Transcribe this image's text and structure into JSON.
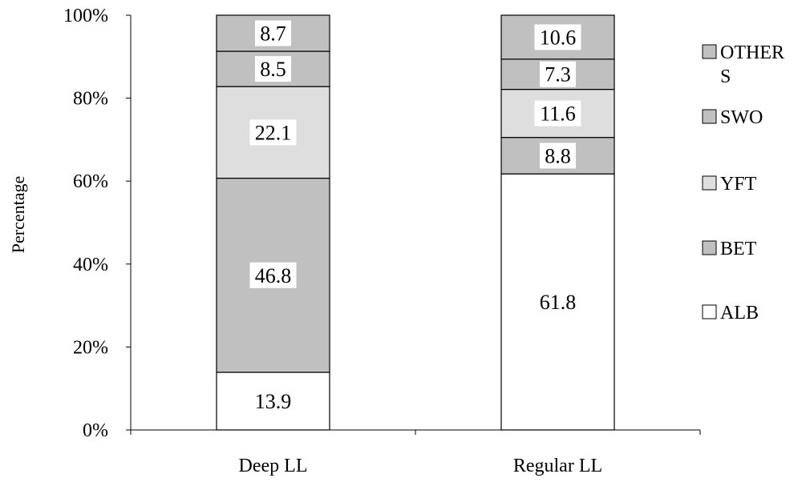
{
  "chart_data": {
    "type": "bar",
    "stacked": true,
    "percent_stacked": true,
    "categories": [
      "Deep LL",
      "Regular LL"
    ],
    "series": [
      {
        "name": "ALB",
        "values": [
          13.9,
          61.8
        ],
        "color": "#ffffff"
      },
      {
        "name": "BET",
        "values": [
          46.8,
          8.8
        ],
        "color": "#c0c0c0"
      },
      {
        "name": "YFT",
        "values": [
          22.1,
          11.6
        ],
        "color": "#dedede"
      },
      {
        "name": "SWO",
        "values": [
          8.5,
          7.3
        ],
        "color": "#c0c0c0"
      },
      {
        "name": "OTHERS",
        "values": [
          8.7,
          10.6
        ],
        "color": "#c0c0c0"
      }
    ],
    "legend": {
      "placement": "right",
      "entries": [
        {
          "label_lines": [
            "OTHER",
            "S"
          ],
          "series": "OTHERS"
        },
        {
          "label_lines": [
            "SWO"
          ],
          "series": "SWO"
        },
        {
          "label_lines": [
            "YFT"
          ],
          "series": "YFT"
        },
        {
          "label_lines": [
            "BET"
          ],
          "series": "BET"
        },
        {
          "label_lines": [
            "ALB"
          ],
          "series": "ALB"
        }
      ]
    },
    "ylabel": "Percentage",
    "xlabel": "",
    "ylim": [
      0,
      100
    ],
    "yticks": [
      "0%",
      "20%",
      "40%",
      "60%",
      "80%",
      "100%"
    ],
    "grid": false
  }
}
